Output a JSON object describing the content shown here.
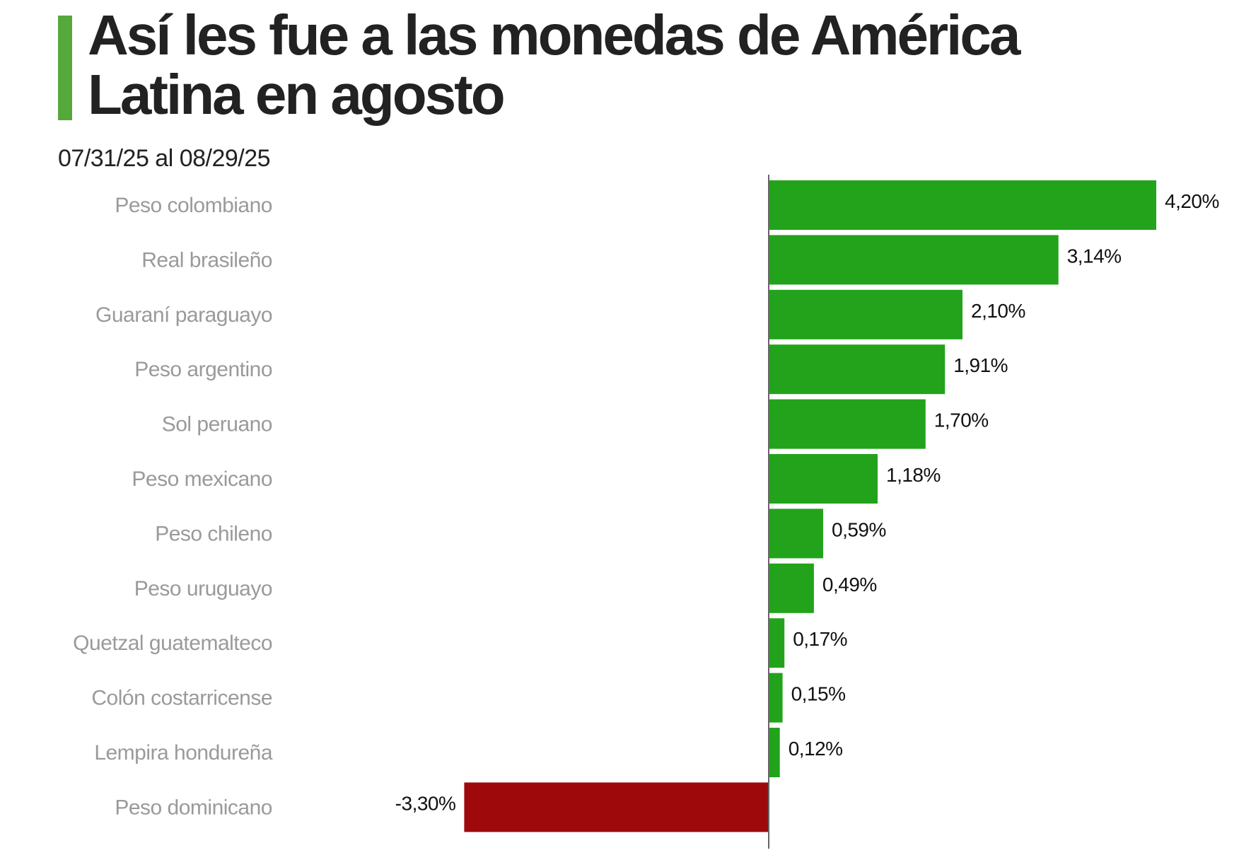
{
  "header": {
    "title": "Así les fue a las monedas de América Latina en agosto",
    "subtitle": "07/31/25 al 08/29/25"
  },
  "colors": {
    "accent": "#57a83a",
    "positive": "#22a31b",
    "negative": "#9e0a0c",
    "axis": "#666666",
    "category_text": "#9a9a9a"
  },
  "chart_data": {
    "type": "bar",
    "orientation": "horizontal",
    "title": "Así les fue a las monedas de América Latina en agosto",
    "subtitle": "07/31/25 al 08/29/25",
    "categories": [
      "Peso colombiano",
      "Real brasileño",
      "Guaraní paraguayo",
      "Peso argentino",
      "Sol peruano",
      "Peso mexicano",
      "Peso chileno",
      "Peso uruguayo",
      "Quetzal guatemalteco",
      "Colón costarricense",
      "Lempira hondureña",
      "Peso dominicano"
    ],
    "values": [
      4.2,
      3.14,
      2.1,
      1.91,
      1.7,
      1.18,
      0.59,
      0.49,
      0.17,
      0.15,
      0.12,
      -3.3
    ],
    "value_labels": [
      "4,20%",
      "3,14%",
      "2,10%",
      "1,91%",
      "1,70%",
      "1,18%",
      "0,59%",
      "0,49%",
      "0,17%",
      "0,15%",
      "0,12%",
      "-3,30%"
    ],
    "unit": "%",
    "xlim": [
      -4.93,
      4.2
    ],
    "grid": false,
    "legend": "none"
  }
}
